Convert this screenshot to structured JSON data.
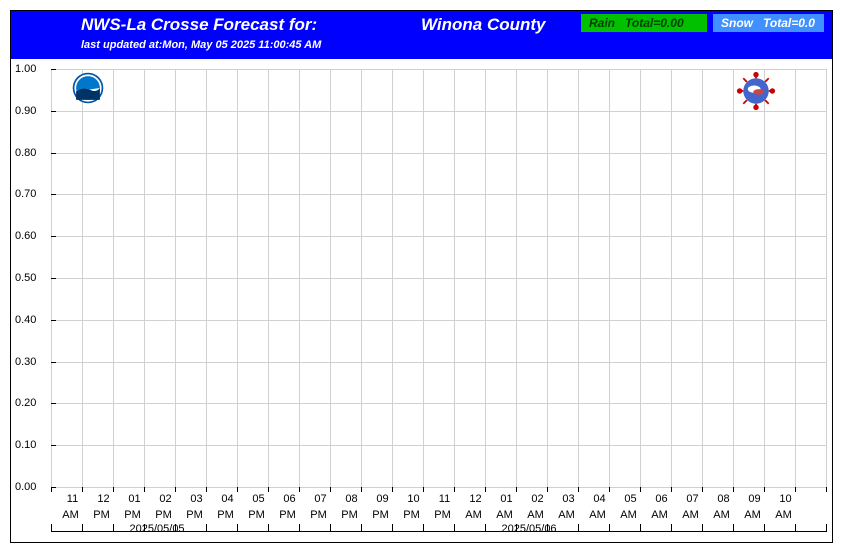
{
  "header": {
    "title": "NWS-La Crosse Forecast for:",
    "location": "Winona County",
    "rain_label": "Rain",
    "rain_total": "Total=0.00",
    "snow_label": "Snow",
    "snow_total": "Total=0.0",
    "update_prefix": "last updated at:",
    "update_time": "Mon, May 05 2025 11:00:45 AM"
  },
  "chart": {
    "type": "line",
    "background_color": "#ffffff",
    "grid_color": "#d0d0d0",
    "border_color": "#000000",
    "header_bg": "#0000ff",
    "rain_bg": "#00c000",
    "snow_bg": "#4090ff",
    "ylim": [
      0.0,
      1.0
    ],
    "ytick_step": 0.1,
    "y_ticks": [
      "0.00",
      "0.10",
      "0.20",
      "0.30",
      "0.40",
      "0.50",
      "0.60",
      "0.70",
      "0.80",
      "0.90",
      "1.00"
    ],
    "x_hours": [
      "11",
      "12",
      "01",
      "02",
      "03",
      "04",
      "05",
      "06",
      "07",
      "08",
      "09",
      "10",
      "11",
      "12",
      "01",
      "02",
      "03",
      "04",
      "05",
      "06",
      "07",
      "08",
      "09",
      "10"
    ],
    "x_ampm": [
      "AM",
      "PM",
      "PM",
      "PM",
      "PM",
      "PM",
      "PM",
      "PM",
      "PM",
      "PM",
      "PM",
      "PM",
      "PM",
      "AM",
      "AM",
      "AM",
      "AM",
      "AM",
      "AM",
      "AM",
      "AM",
      "AM",
      "AM",
      "AM"
    ],
    "x_dates": {
      "3": "2025/05/05",
      "15": "2025/05/06"
    },
    "font_size": 11,
    "title_fontsize": 17,
    "values": []
  }
}
